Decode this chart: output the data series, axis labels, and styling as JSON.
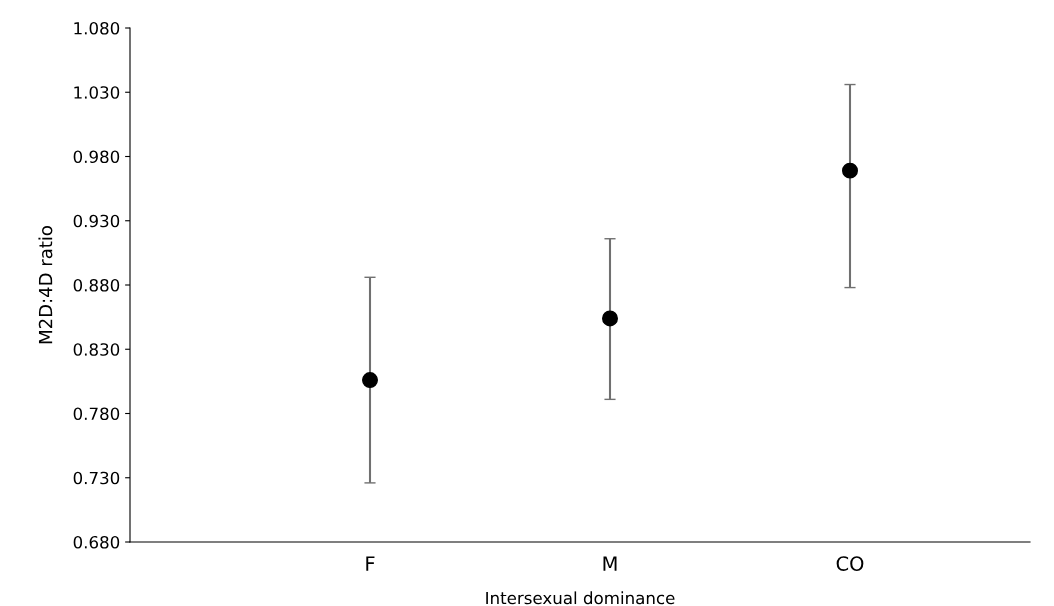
{
  "chart_data": {
    "type": "scatter",
    "xlabel": "Intersexual dominance",
    "ylabel": "M2D:4D ratio",
    "categories": [
      "F",
      "M",
      "CO"
    ],
    "series": [
      {
        "color": "#000000",
        "values": [
          0.806,
          0.854,
          0.969
        ],
        "errors": [
          [
            0.726,
            0.886
          ],
          [
            0.791,
            0.916
          ],
          [
            0.878,
            1.036
          ]
        ]
      }
    ],
    "marker": "circle",
    "grid": false,
    "legend": false,
    "ylim": [
      0.68,
      1.08
    ],
    "yticks": [
      {
        "value": 0.68,
        "label": "0.680"
      },
      {
        "value": 0.73,
        "label": "0.730"
      },
      {
        "value": 0.78,
        "label": "0.780"
      },
      {
        "value": 0.83,
        "label": "0.830"
      },
      {
        "value": 0.88,
        "label": "0.880"
      },
      {
        "value": 0.93,
        "label": "0.930"
      },
      {
        "value": 0.98,
        "label": "0.980"
      },
      {
        "value": 1.03,
        "label": "1.030"
      },
      {
        "value": 1.08,
        "label": "1.080"
      }
    ]
  }
}
